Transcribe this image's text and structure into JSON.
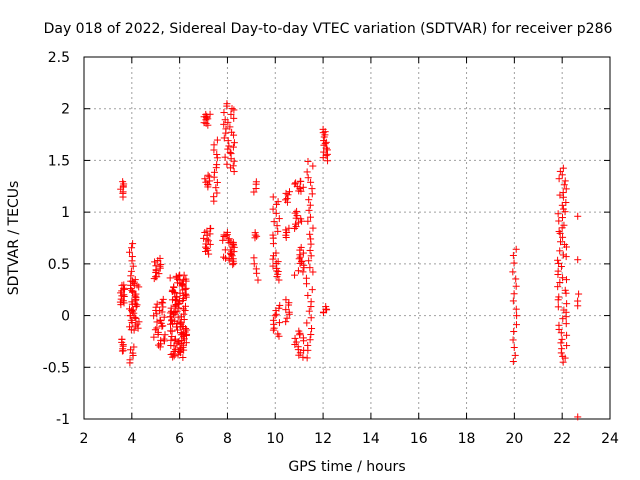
{
  "chart_data": {
    "type": "scatter",
    "title": "Day 018 of 2022, Sidereal Day-to-day VTEC variation (SDTVAR) for receiver p286",
    "xlabel": "GPS time / hours",
    "ylabel": "SDTVAR / TECUs",
    "xlim": [
      2,
      24
    ],
    "ylim": [
      -1,
      2.5
    ],
    "xticks": [
      "2",
      "4",
      "6",
      "8",
      "10",
      "12",
      "14",
      "16",
      "18",
      "20",
      "22",
      "24"
    ],
    "yticks": [
      "-1",
      "-0.5",
      "0",
      "0.5",
      "1",
      "1.5",
      "2",
      "2.5"
    ],
    "grid": true,
    "marker": "plus",
    "color": "#ff0000",
    "clusters": [
      {
        "x": [
          3.5,
          3.7
        ],
        "y": [
          1.15,
          1.3
        ],
        "n": 8
      },
      {
        "x": [
          3.5,
          3.7
        ],
        "y": [
          0.1,
          0.3
        ],
        "n": 14
      },
      {
        "x": [
          3.5,
          3.7
        ],
        "y": [
          -0.35,
          -0.22
        ],
        "n": 8
      },
      {
        "x": [
          3.9,
          4.1
        ],
        "y": [
          0.3,
          0.7
        ],
        "n": 10
      },
      {
        "x": [
          3.9,
          4.3
        ],
        "y": [
          -0.15,
          0.35
        ],
        "n": 40
      },
      {
        "x": [
          3.9,
          4.1
        ],
        "y": [
          -0.45,
          -0.3
        ],
        "n": 6
      },
      {
        "x": [
          4.9,
          5.3
        ],
        "y": [
          0.35,
          0.55
        ],
        "n": 14
      },
      {
        "x": [
          4.9,
          5.4
        ],
        "y": [
          -0.3,
          0.15
        ],
        "n": 30
      },
      {
        "x": [
          5.6,
          6.3
        ],
        "y": [
          -0.4,
          0.4
        ],
        "n": 120
      },
      {
        "x": [
          7.0,
          7.3
        ],
        "y": [
          1.85,
          1.95
        ],
        "n": 10
      },
      {
        "x": [
          7.0,
          7.3
        ],
        "y": [
          1.25,
          1.35
        ],
        "n": 8
      },
      {
        "x": [
          7.4,
          7.6
        ],
        "y": [
          1.1,
          1.7
        ],
        "n": 14
      },
      {
        "x": [
          7.0,
          7.3
        ],
        "y": [
          0.6,
          0.85
        ],
        "n": 16
      },
      {
        "x": [
          7.8,
          8.3
        ],
        "y": [
          1.4,
          2.05
        ],
        "n": 30
      },
      {
        "x": [
          7.8,
          8.3
        ],
        "y": [
          0.5,
          0.8
        ],
        "n": 30
      },
      {
        "x": [
          9.1,
          9.3
        ],
        "y": [
          1.2,
          1.3
        ],
        "n": 4
      },
      {
        "x": [
          9.1,
          9.3
        ],
        "y": [
          0.75,
          0.8
        ],
        "n": 4
      },
      {
        "x": [
          9.1,
          9.3
        ],
        "y": [
          0.35,
          0.55
        ],
        "n": 5
      },
      {
        "x": [
          9.9,
          10.2
        ],
        "y": [
          0.7,
          1.15
        ],
        "n": 12
      },
      {
        "x": [
          9.9,
          10.2
        ],
        "y": [
          0.35,
          0.6
        ],
        "n": 12
      },
      {
        "x": [
          9.9,
          10.2
        ],
        "y": [
          -0.2,
          0.1
        ],
        "n": 12
      },
      {
        "x": [
          10.4,
          10.6
        ],
        "y": [
          1.1,
          1.2
        ],
        "n": 6
      },
      {
        "x": [
          10.4,
          10.6
        ],
        "y": [
          0.75,
          0.85
        ],
        "n": 5
      },
      {
        "x": [
          10.4,
          10.6
        ],
        "y": [
          -0.05,
          0.15
        ],
        "n": 8
      },
      {
        "x": [
          10.8,
          11.2
        ],
        "y": [
          1.2,
          1.3
        ],
        "n": 10
      },
      {
        "x": [
          10.8,
          11.2
        ],
        "y": [
          0.85,
          1.0
        ],
        "n": 10
      },
      {
        "x": [
          10.8,
          11.2
        ],
        "y": [
          0.4,
          0.65
        ],
        "n": 14
      },
      {
        "x": [
          10.8,
          11.2
        ],
        "y": [
          -0.4,
          -0.15
        ],
        "n": 14
      },
      {
        "x": [
          11.3,
          11.6
        ],
        "y": [
          -0.4,
          1.5
        ],
        "n": 36
      },
      {
        "x": [
          12.0,
          12.2
        ],
        "y": [
          1.5,
          1.8
        ],
        "n": 16
      },
      {
        "x": [
          12.0,
          12.2
        ],
        "y": [
          0.03,
          0.08
        ],
        "n": 6
      },
      {
        "x": [
          19.9,
          20.1
        ],
        "y": [
          -0.45,
          0.65
        ],
        "n": 16
      },
      {
        "x": [
          21.8,
          22.2
        ],
        "y": [
          -0.45,
          1.42
        ],
        "n": 60
      },
      {
        "x": [
          22.6,
          22.7
        ],
        "y": [
          0.1,
          0.2
        ],
        "n": 3
      }
    ],
    "points": [
      {
        "x": 22.65,
        "y": 0.96
      },
      {
        "x": 22.65,
        "y": 0.54
      },
      {
        "x": 22.65,
        "y": -0.98
      }
    ]
  }
}
